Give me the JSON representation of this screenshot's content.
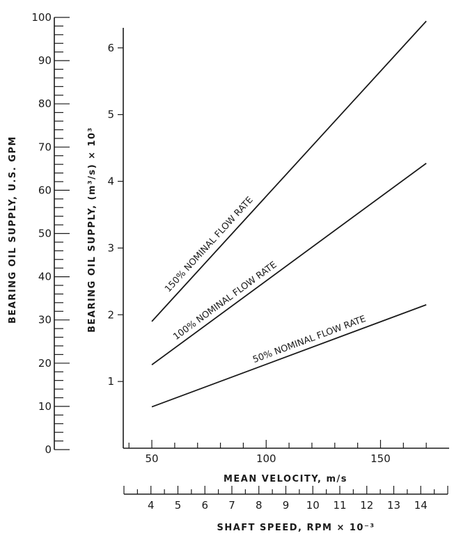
{
  "chart_data": {
    "type": "line",
    "axes": {
      "gpm": {
        "label": "BEARING OIL SUPPLY, U.S. GPM",
        "range": [
          0,
          100
        ],
        "major_ticks": [
          0,
          10,
          20,
          30,
          40,
          50,
          60,
          70,
          80,
          90,
          100
        ],
        "tick_labels": [
          "0",
          "10",
          "20",
          "30",
          "40",
          "50",
          "60",
          "70",
          "80",
          "90",
          "100"
        ],
        "minor_step": 2
      },
      "y": {
        "label": "BEARING OIL SUPPLY, (m³/s) × 10³",
        "range": [
          0,
          6.3
        ],
        "major_ticks": [
          1,
          2,
          3,
          4,
          5,
          6
        ],
        "tick_labels": [
          "1",
          "2",
          "3",
          "4",
          "5",
          "6"
        ]
      },
      "x": {
        "label": "MEAN VELOCITY, m/s",
        "range": [
          37.5,
          180
        ],
        "major_ticks": [
          50,
          100,
          150
        ],
        "tick_labels": [
          "50",
          "100",
          "150"
        ],
        "minor_step": 10
      },
      "speed": {
        "label": "SHAFT SPEED, RPM × 10⁻³",
        "range": [
          3,
          15
        ],
        "major_ticks": [
          4,
          5,
          6,
          7,
          8,
          9,
          10,
          11,
          12,
          13,
          14
        ],
        "tick_labels": [
          "4",
          "5",
          "6",
          "7",
          "8",
          "9",
          "10",
          "11",
          "12",
          "13",
          "14"
        ]
      }
    },
    "series": [
      {
        "name": "150% NOMINAL FLOW RATE",
        "x": [
          50,
          170
        ],
        "y": [
          1.9,
          6.4
        ]
      },
      {
        "name": "100% NOMINAL FLOW RATE",
        "x": [
          50,
          170
        ],
        "y": [
          1.25,
          4.27
        ]
      },
      {
        "name": "50% NOMINAL FLOW RATE",
        "x": [
          50,
          170
        ],
        "y": [
          0.62,
          2.15
        ]
      }
    ]
  }
}
